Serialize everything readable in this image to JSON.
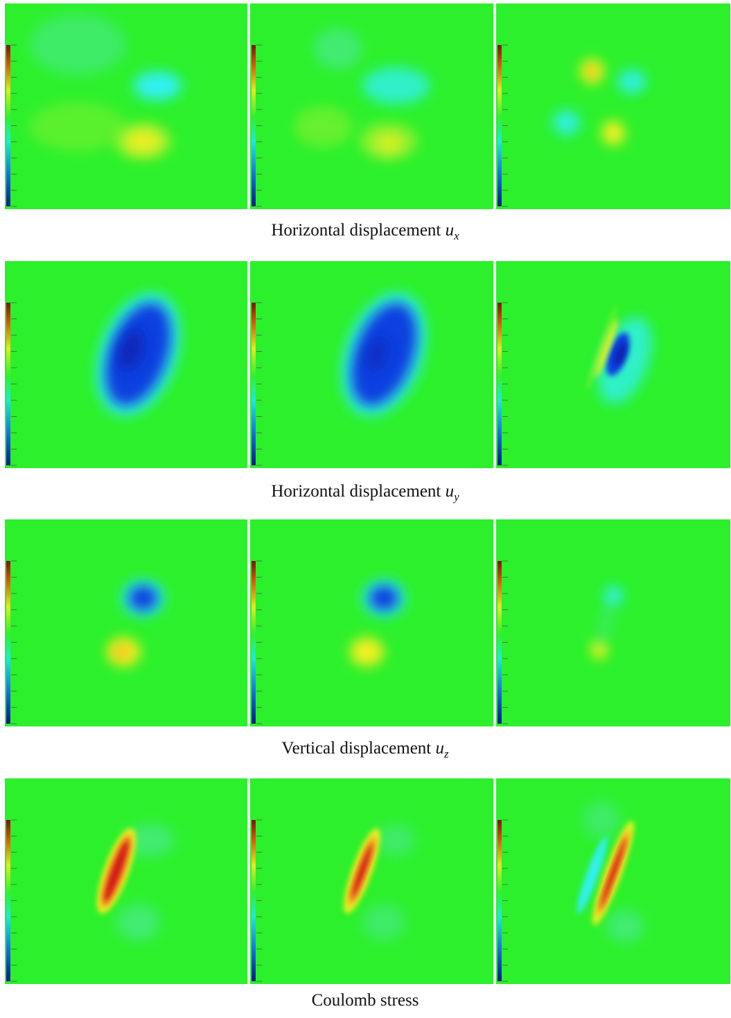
{
  "captions": [
    {
      "text": "Horizontal displacement",
      "variable": "u",
      "subscript": "x"
    },
    {
      "text": "Horizontal displacement",
      "variable": "u",
      "subscript": "y"
    },
    {
      "text": "Vertical displacement",
      "variable": "u",
      "subscript": "z"
    },
    {
      "text": "Coulomb stress"
    }
  ]
}
